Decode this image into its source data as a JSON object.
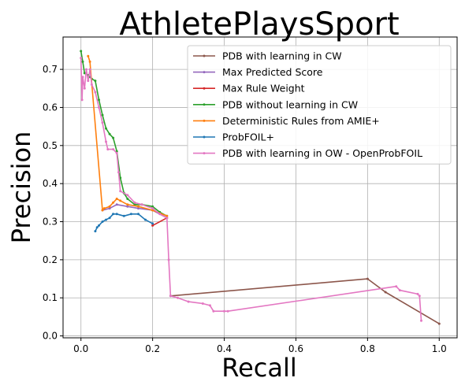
{
  "chart_data": {
    "type": "line",
    "title": "AthletePlaysSport",
    "xlabel": "Recall",
    "ylabel": "Precision",
    "xlim": [
      -0.05,
      1.05
    ],
    "ylim": [
      -0.005,
      0.785
    ],
    "x_ticks": [
      0.0,
      0.2,
      0.4,
      0.6,
      0.8,
      1.0
    ],
    "x_tick_labels": [
      "0.0",
      "0.2",
      "0.4",
      "0.6",
      "0.8",
      "1.0"
    ],
    "y_ticks": [
      0.0,
      0.1,
      0.2,
      0.3,
      0.4,
      0.5,
      0.6,
      0.7
    ],
    "y_tick_labels": [
      "0.0",
      "0.1",
      "0.2",
      "0.3",
      "0.4",
      "0.5",
      "0.6",
      "0.7"
    ],
    "grid": true,
    "legend_position": "top-right",
    "series": [
      {
        "name": "PDB with learning in CW",
        "color": "#8c564b",
        "points": [
          [
            0.25,
            0.105
          ],
          [
            0.8,
            0.15
          ],
          [
            0.85,
            0.115
          ],
          [
            1.0,
            0.032
          ]
        ]
      },
      {
        "name": "Max Predicted Score",
        "color": "#9467bd",
        "points": [
          [
            0.06,
            0.33
          ],
          [
            0.08,
            0.335
          ],
          [
            0.1,
            0.345
          ],
          [
            0.13,
            0.34
          ],
          [
            0.16,
            0.335
          ],
          [
            0.2,
            0.33
          ],
          [
            0.24,
            0.31
          ]
        ]
      },
      {
        "name": "Max Rule Weight",
        "color": "#d62728",
        "points": [
          [
            0.2,
            0.29
          ],
          [
            0.24,
            0.31
          ]
        ]
      },
      {
        "name": "PDB without learning in CW",
        "color": "#2ca02c",
        "points": [
          [
            0.0,
            0.748
          ],
          [
            0.005,
            0.72
          ],
          [
            0.01,
            0.69
          ],
          [
            0.02,
            0.685
          ],
          [
            0.025,
            0.68
          ],
          [
            0.03,
            0.675
          ],
          [
            0.04,
            0.67
          ],
          [
            0.05,
            0.62
          ],
          [
            0.06,
            0.58
          ],
          [
            0.07,
            0.545
          ],
          [
            0.08,
            0.53
          ],
          [
            0.09,
            0.52
          ],
          [
            0.1,
            0.485
          ],
          [
            0.11,
            0.415
          ],
          [
            0.12,
            0.375
          ],
          [
            0.13,
            0.36
          ],
          [
            0.15,
            0.345
          ],
          [
            0.17,
            0.345
          ],
          [
            0.2,
            0.34
          ],
          [
            0.22,
            0.325
          ],
          [
            0.24,
            0.315
          ]
        ]
      },
      {
        "name": "Deterministic Rules from AMIE+",
        "color": "#ff7f0e",
        "points": [
          [
            0.02,
            0.735
          ],
          [
            0.025,
            0.72
          ],
          [
            0.06,
            0.33
          ],
          [
            0.065,
            0.335
          ],
          [
            0.08,
            0.34
          ],
          [
            0.09,
            0.35
          ],
          [
            0.1,
            0.36
          ],
          [
            0.11,
            0.355
          ],
          [
            0.13,
            0.345
          ],
          [
            0.16,
            0.34
          ],
          [
            0.2,
            0.33
          ],
          [
            0.24,
            0.315
          ]
        ]
      },
      {
        "name": "ProbFOIL+",
        "color": "#1f77b4",
        "points": [
          [
            0.04,
            0.275
          ],
          [
            0.045,
            0.285
          ],
          [
            0.05,
            0.29
          ],
          [
            0.06,
            0.3
          ],
          [
            0.07,
            0.305
          ],
          [
            0.08,
            0.31
          ],
          [
            0.09,
            0.32
          ],
          [
            0.1,
            0.32
          ],
          [
            0.12,
            0.315
          ],
          [
            0.14,
            0.32
          ],
          [
            0.16,
            0.32
          ],
          [
            0.18,
            0.305
          ],
          [
            0.2,
            0.295
          ]
        ]
      },
      {
        "name": "PDB with learning in OW - OpenProbFOIL",
        "color": "#e377c2",
        "points": [
          [
            0.0,
            0.73
          ],
          [
            0.003,
            0.62
          ],
          [
            0.005,
            0.68
          ],
          [
            0.01,
            0.65
          ],
          [
            0.015,
            0.7
          ],
          [
            0.02,
            0.67
          ],
          [
            0.025,
            0.7
          ],
          [
            0.03,
            0.66
          ],
          [
            0.04,
            0.64
          ],
          [
            0.05,
            0.6
          ],
          [
            0.06,
            0.56
          ],
          [
            0.07,
            0.51
          ],
          [
            0.075,
            0.49
          ],
          [
            0.09,
            0.49
          ],
          [
            0.1,
            0.48
          ],
          [
            0.105,
            0.43
          ],
          [
            0.11,
            0.38
          ],
          [
            0.13,
            0.37
          ],
          [
            0.15,
            0.35
          ],
          [
            0.17,
            0.345
          ],
          [
            0.2,
            0.335
          ],
          [
            0.22,
            0.32
          ],
          [
            0.24,
            0.31
          ],
          [
            0.245,
            0.2
          ],
          [
            0.25,
            0.105
          ],
          [
            0.27,
            0.1
          ],
          [
            0.3,
            0.09
          ],
          [
            0.34,
            0.085
          ],
          [
            0.36,
            0.08
          ],
          [
            0.37,
            0.065
          ],
          [
            0.4,
            0.065
          ],
          [
            0.41,
            0.065
          ],
          [
            0.88,
            0.13
          ],
          [
            0.89,
            0.12
          ],
          [
            0.94,
            0.11
          ],
          [
            0.945,
            0.105
          ],
          [
            0.95,
            0.04
          ]
        ]
      }
    ]
  }
}
